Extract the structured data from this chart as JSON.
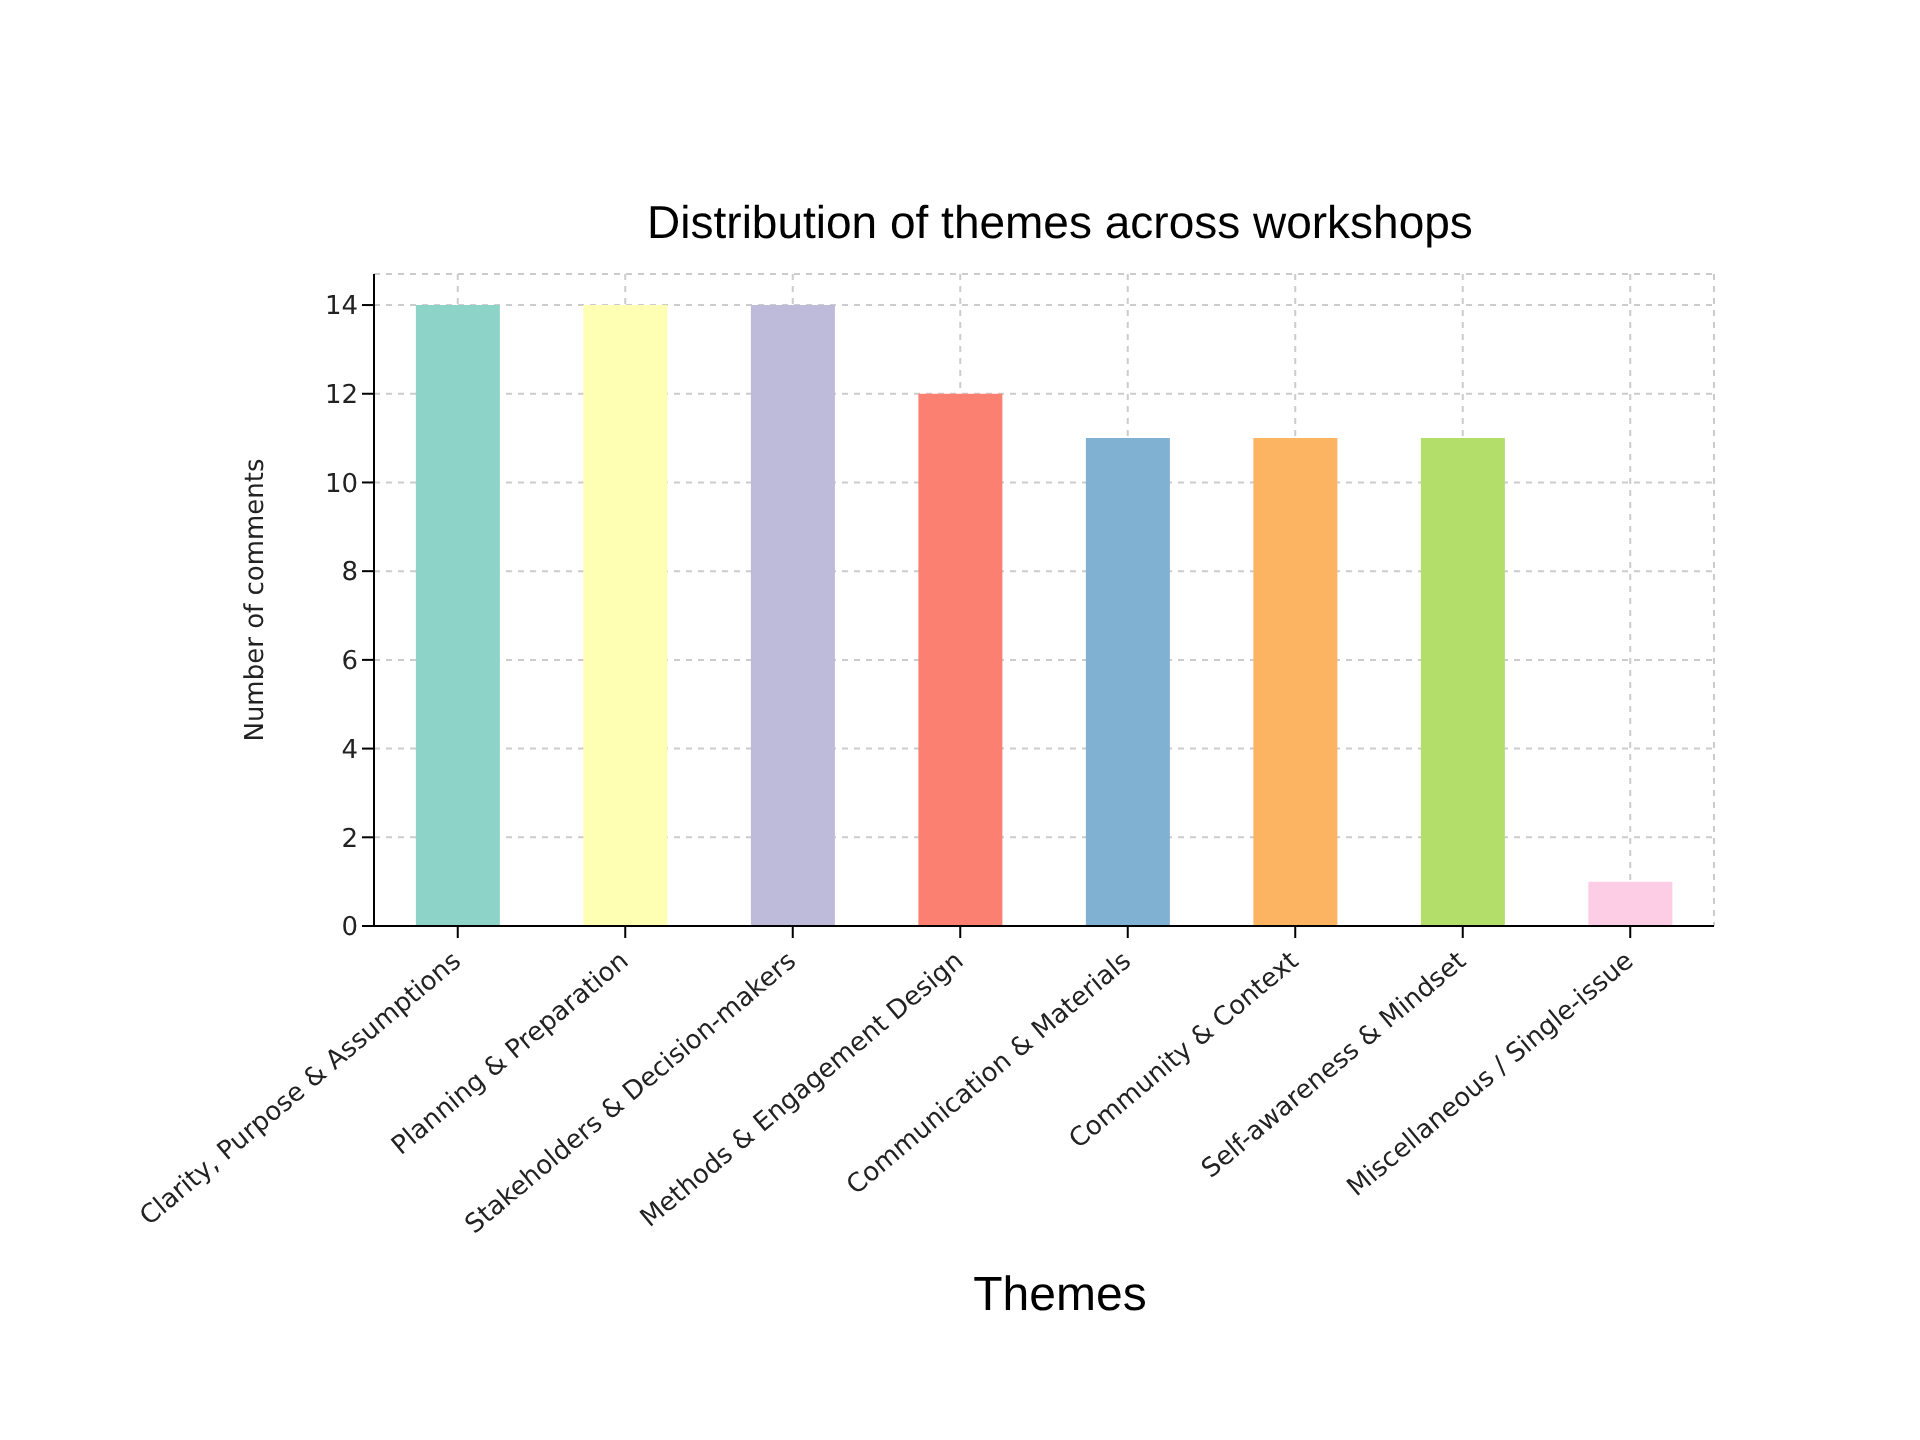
{
  "chart_data": {
    "type": "bar",
    "title": "Distribution of themes across workshops",
    "xlabel": "Themes",
    "ylabel": "Number of comments",
    "categories": [
      "Clarity, Purpose & Assumptions",
      "Planning & Preparation",
      "Stakeholders & Decision-makers",
      "Methods & Engagement Design",
      "Communication & Materials",
      "Community & Context",
      "Self-awareness & Mindset",
      "Miscellaneous / Single-issue"
    ],
    "values": [
      14,
      14,
      14,
      12,
      11,
      11,
      11,
      1
    ],
    "colors": [
      "#8dd3c7",
      "#ffffb3",
      "#bebada",
      "#fb8072",
      "#80b1d3",
      "#fdb462",
      "#b3de69",
      "#fccde5"
    ],
    "ylim": [
      0,
      14.7
    ],
    "yticks": [
      0,
      2,
      4,
      6,
      8,
      10,
      12,
      14
    ],
    "grid": true
  }
}
